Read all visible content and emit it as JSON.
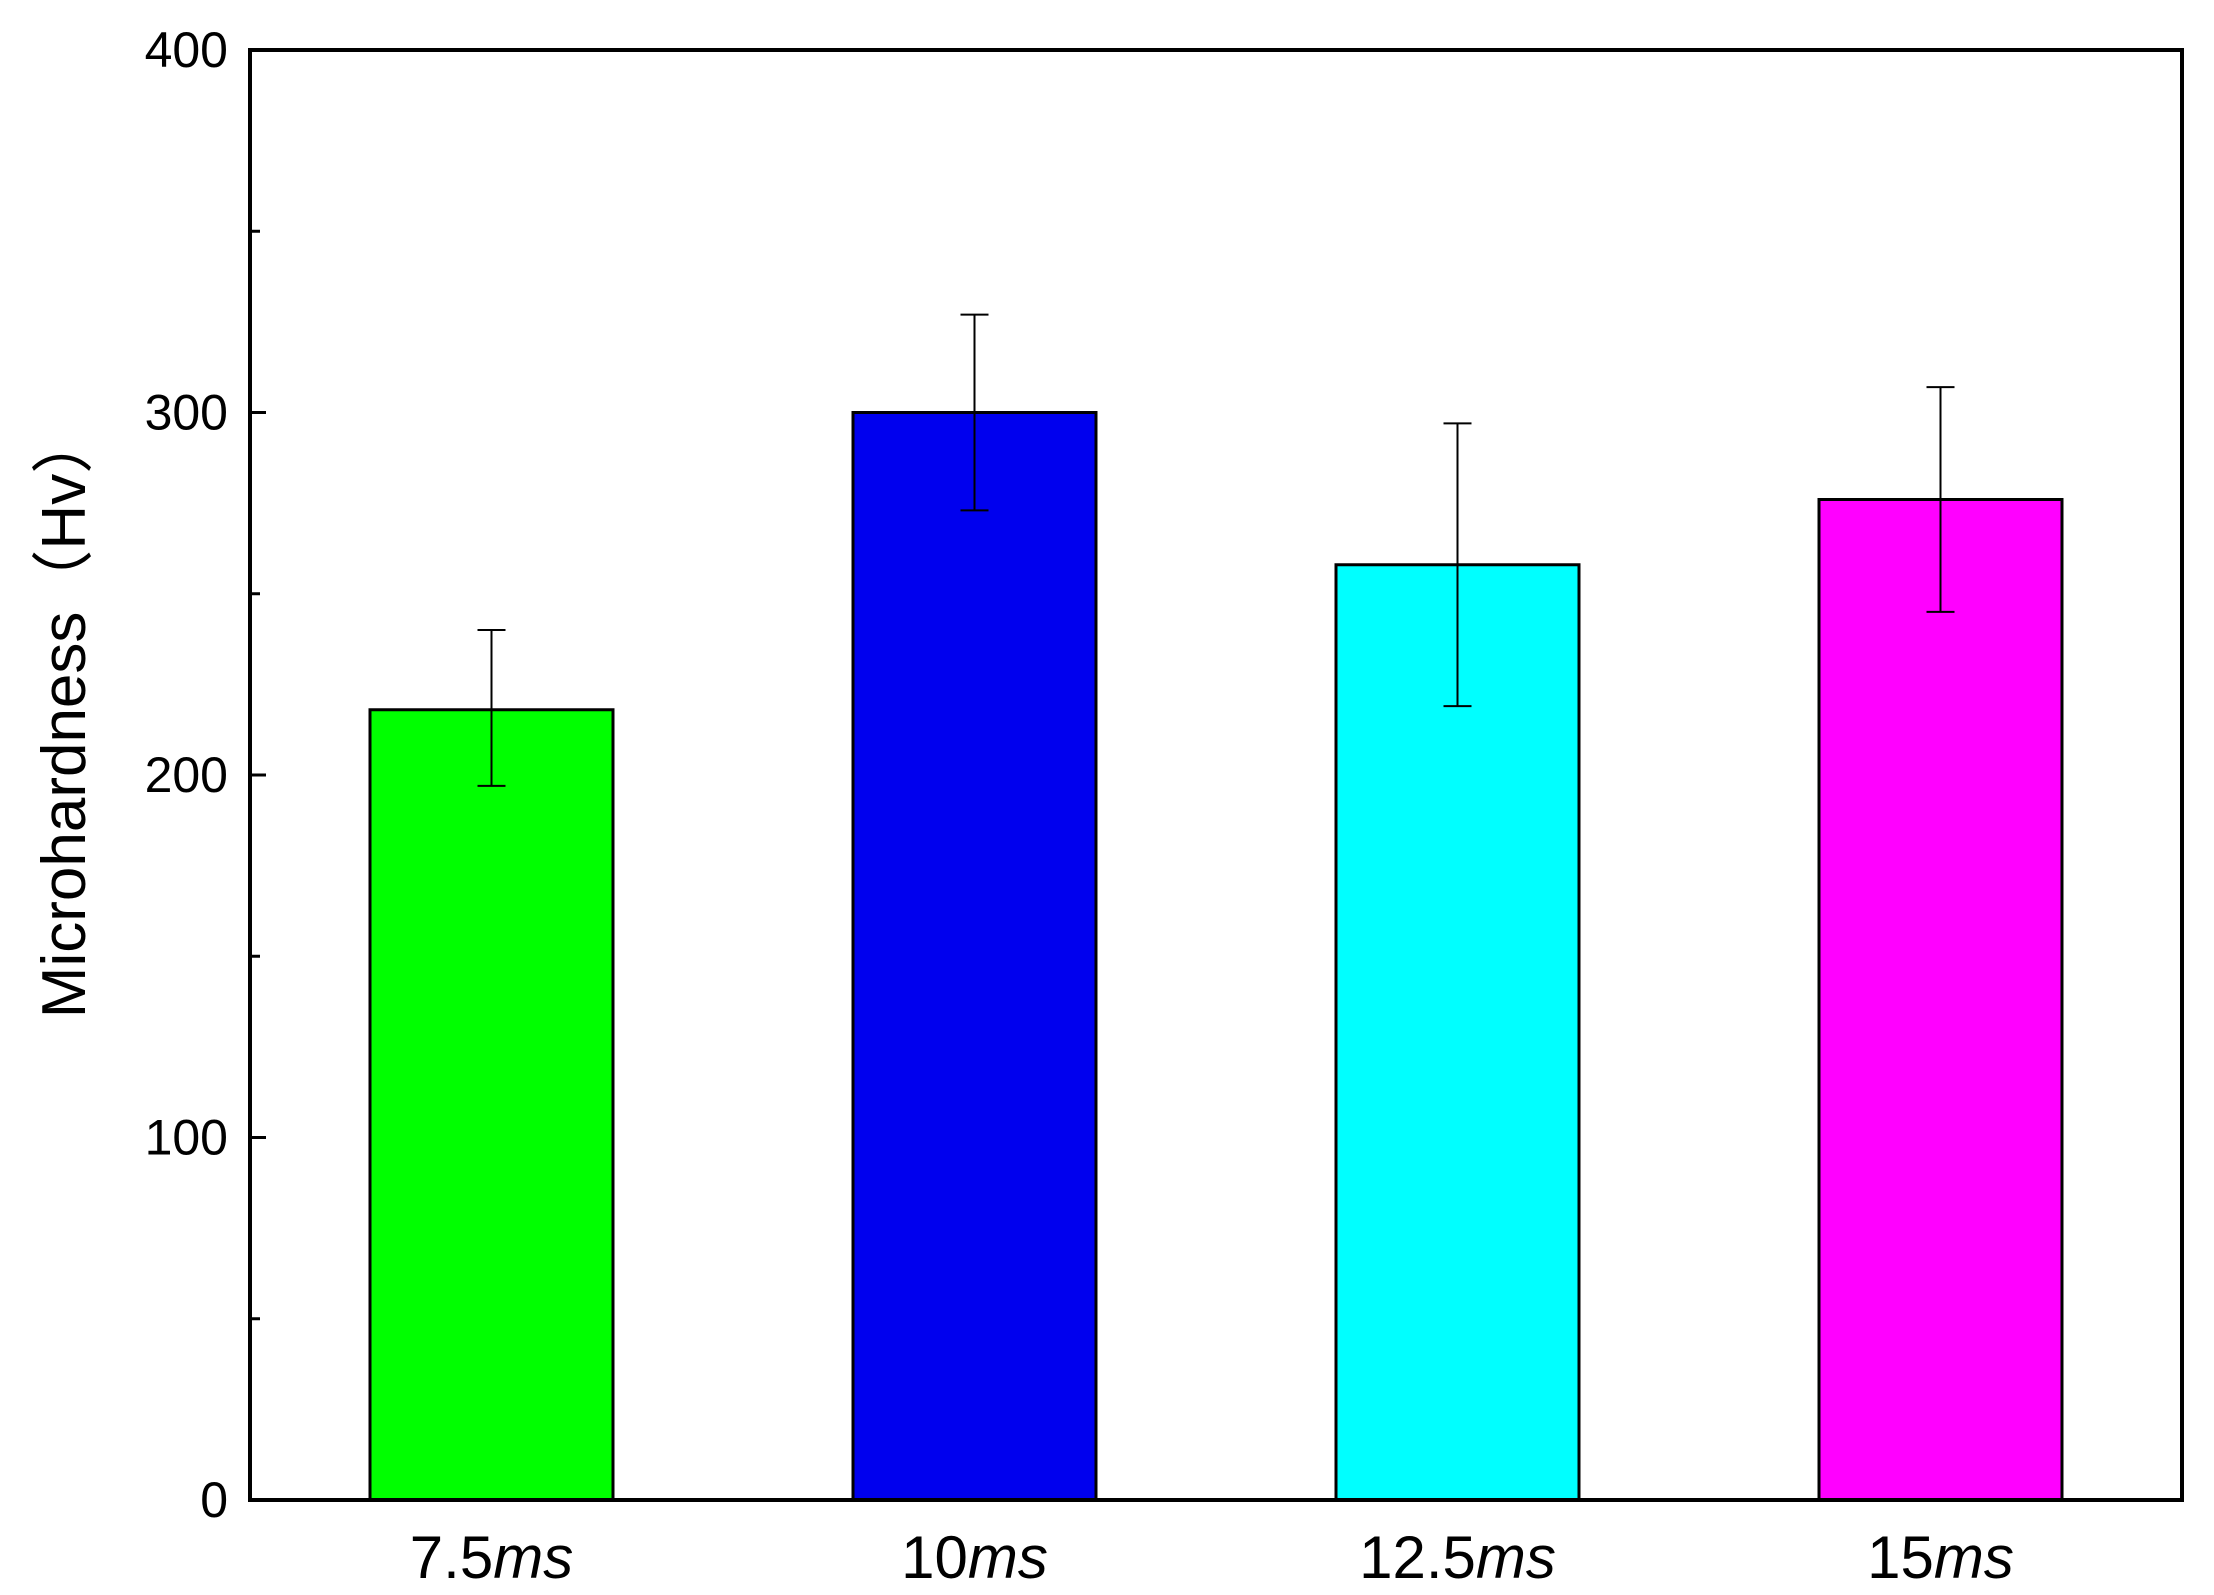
{
  "chart_data": {
    "type": "bar",
    "ylabel": "Microhardness（Hv）",
    "ylim": [
      0,
      400
    ],
    "yticks": [
      "0",
      "100",
      "200",
      "300",
      "400"
    ],
    "yminor": [
      50,
      150,
      250,
      350
    ],
    "categories": [
      {
        "num": "7.5",
        "unit": "ms"
      },
      {
        "num": "10",
        "unit": "ms"
      },
      {
        "num": "12.5",
        "unit": "ms"
      },
      {
        "num": "15",
        "unit": "ms"
      }
    ],
    "values": [
      218,
      300,
      258,
      276
    ],
    "error_high": [
      240,
      327,
      297,
      307
    ],
    "error_low": [
      197,
      273,
      219,
      245
    ],
    "colors": [
      "#00ff00",
      "#0000ee",
      "#00ffff",
      "#ff00ff"
    ],
    "grid": false,
    "legend": "none"
  }
}
